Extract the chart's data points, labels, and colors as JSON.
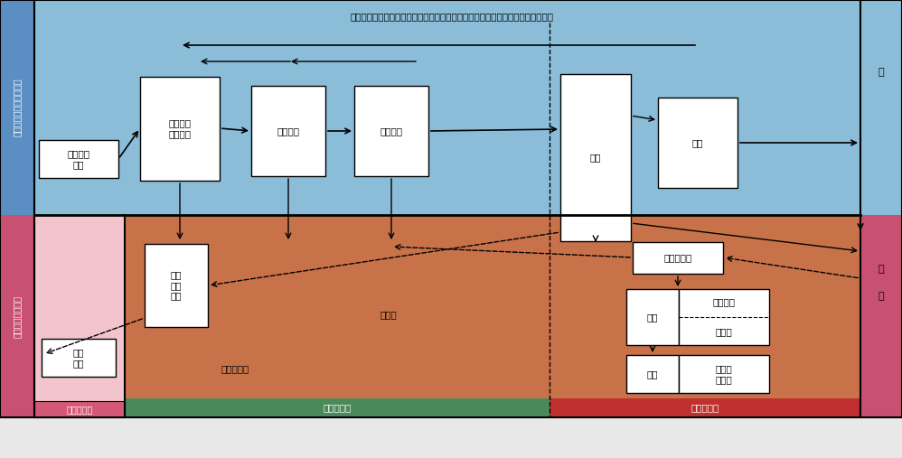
{
  "title": "第２次産業と第３次産業の連携した製造・販売・回収・再利用等の循環システム",
  "blue_bg": "#8BBDD9",
  "orange_bg": "#C8724A",
  "pink_bg": "#F2C4CC",
  "dark_pink_left": "#C85070",
  "dark_pink_1ji": "#D45878",
  "green_bar": "#4A8A5A",
  "red_bar": "#C03030",
  "left_col_blue": "#5B8EC2",
  "left_col_pink": "#C85070",
  "right_col_blue": "#8BBDD9",
  "right_col_pink": "#C85070",
  "label_future": "今後強化されるべき役割",
  "label_present": "現在の主要な役割",
  "label_consumer_kyo": "消",
  "label_consumer_hi": "費",
  "label_consumer_sha": "者",
  "label_eco": "エコ資源\n供給",
  "label_shoku": "食糧\n供給",
  "label_1ji": "第１次産業",
  "label_2ji": "第２次産業",
  "label_3ji": "第３次産業",
  "label_sozai": "素材生産\n材料加工",
  "label_buhin": "部品製造",
  "label_seihin": "製品製造",
  "label_ryutsu": "流通",
  "label_hanbai": "販売",
  "label_tennen": "天然\n資源\n採取",
  "label_riyou": "再利用",
  "label_compost": "コンポスト",
  "label_haiki": "廃棄物収集",
  "label_chukan": "中間処理",
  "label_sasei": "再生",
  "label_shokyaku": "焼却等",
  "label_umetate": "埋立",
  "label_hainetsu": "排熱回\n収利用"
}
